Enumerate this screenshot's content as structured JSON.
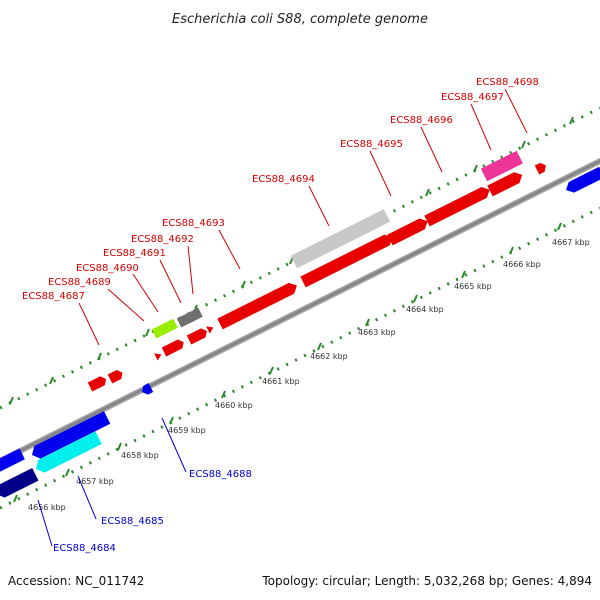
{
  "title": "Escherichia coli S88, complete genome",
  "footer": {
    "accession": "Accession: NC_011742",
    "summary": "Topology: circular; Length: 5,032,268 bp; Genes: 4,894"
  },
  "colors": {
    "forward_label": "#d40000",
    "reverse_label": "#0000cc",
    "tick": "#2a8a2a",
    "backbone": "#8c8c8c"
  },
  "ticks": [
    "4656 kbp",
    "4657 kbp",
    "4658 kbp",
    "4659 kbp",
    "4660 kbp",
    "4661 kbp",
    "4662 kbp",
    "4663 kbp",
    "4664 kbp",
    "4665 kbp",
    "4666 kbp",
    "4667 kbp"
  ],
  "forward_labels": [
    "ECS88_4687",
    "ECS88_4689",
    "ECS88_4690",
    "ECS88_4691",
    "ECS88_4692",
    "ECS88_4693",
    "ECS88_4694",
    "ECS88_4695",
    "ECS88_4696",
    "ECS88_4697",
    "ECS88_4698"
  ],
  "reverse_labels": [
    "ECS88_4684",
    "ECS88_4685",
    "ECS88_4688"
  ]
}
